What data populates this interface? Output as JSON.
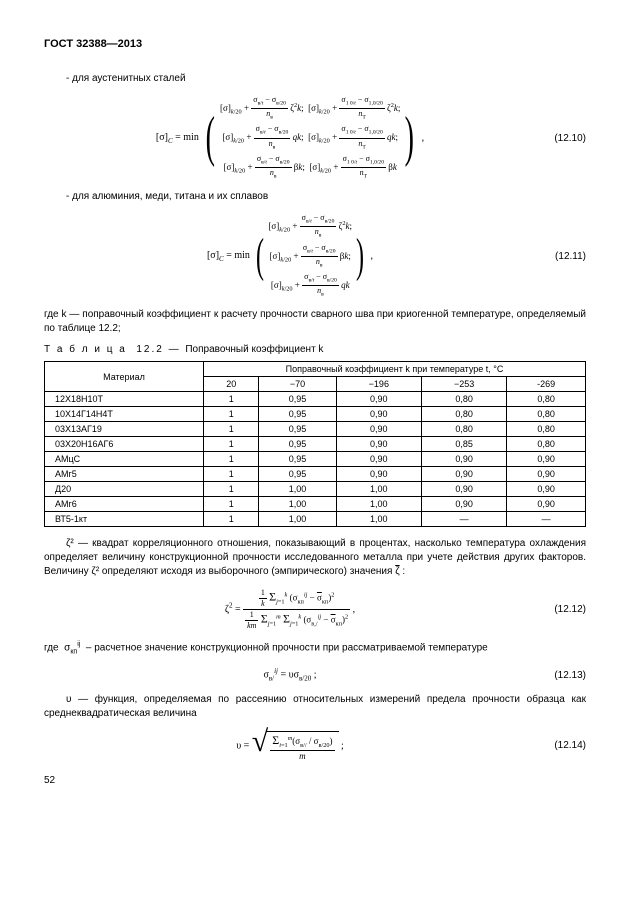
{
  "header": "ГОСТ 32388—2013",
  "t1": "- для аустенитных сталей",
  "eq10": {
    "lhs": "[σ]_C = min",
    "row1a": "[σ]_{k/20} + (σ_{в/t} − σ_{в/20}) / n_в · ζ²k;",
    "row1b": "[σ]_{k/20} + (σ_{1 0/t} − σ_{1,0/20}) / n_T · ζ²k;",
    "row2a": "[σ]_{k/20} + (σ_{в/t} − σ_{в/20}) / n_в · qk;",
    "row2b": "[σ]_{k/20} + (σ_{1 0/t} − σ_{1,0/20}) / n_T · qk;",
    "row3a": "[σ]_{k/20} + (σ_{в/t} − σ_{в/20}) / n_в · βk;",
    "row3b": "[σ]_{k/20} + (σ_{1 0/t} − σ_{1,0/20}) / n_T · βk",
    "num": "(12.10)"
  },
  "t2": "- для алюминия, меди, титана и их сплавов",
  "eq11": {
    "lhs": "[σ]_C = min",
    "r1": "[σ]_{k/20} + (σ_{в/t} − σ_{в/20}) / n_в · ζ²k;",
    "r2": "[σ]_{k/20} + (σ_{в/t} − σ_{в/20}) / n_в · βk;",
    "r3": "[σ]_{k/20} + (σ_{в/t} − σ_{в/20}) / n_в · qk",
    "num": "(12.11)"
  },
  "t3": "где k — поправочный коэффициент к расчету прочности сварного шва при криогенной температуре, определяемый по таблице 12.2;",
  "table_title_a": "Т а б л и ц а  12.2 — ",
  "table_title_b": "Поправочный коэффициент k",
  "table": {
    "h_mat": "Материал",
    "h_coef": "Поправочный коэффициент k при температуре t, °С",
    "temps": [
      "20",
      "−70",
      "−196",
      "−253",
      "-269"
    ],
    "rows": [
      {
        "m": "12Х18Н10Т",
        "v": [
          "1",
          "0,95",
          "0,90",
          "0,80",
          "0,80"
        ]
      },
      {
        "m": "10Х14Г14Н4Т",
        "v": [
          "1",
          "0,95",
          "0,90",
          "0,80",
          "0,80"
        ]
      },
      {
        "m": "03Х13АГ19",
        "v": [
          "1",
          "0,95",
          "0,90",
          "0,80",
          "0,80"
        ]
      },
      {
        "m": "03Х20Н16АГ6",
        "v": [
          "1",
          "0,95",
          "0,90",
          "0,85",
          "0,80"
        ]
      },
      {
        "m": "АМцС",
        "v": [
          "1",
          "0,95",
          "0,90",
          "0,90",
          "0,90"
        ]
      },
      {
        "m": "АМг5",
        "v": [
          "1",
          "0,95",
          "0,90",
          "0,90",
          "0,90"
        ]
      },
      {
        "m": "Д20",
        "v": [
          "1",
          "1,00",
          "1,00",
          "0,90",
          "0,90"
        ]
      },
      {
        "m": "АМг6",
        "v": [
          "1",
          "1,00",
          "1,00",
          "0,90",
          "0,90"
        ]
      },
      {
        "m": "ВТ5-1кт",
        "v": [
          "1",
          "1,00",
          "1,00",
          "—",
          "—"
        ]
      }
    ]
  },
  "t4a": "ζ² — квадрат корреляционного отношения, показывающий в процентах, насколько температура охлаждения определяет величину конструкционной прочности исследованного металла при учете действия других факторов. Величину ζ² определяют исходя из выборочного (эмпирического) значения ",
  "t4b": "ζ",
  "t4c": " :",
  "eq12": {
    "num": "(12.12)"
  },
  "t5a": "где  σ",
  "t5b": "кп",
  "t5c": "ij",
  "t5d": "  – расчетное значение конструкционной прочности при рассматриваемой температуре",
  "eq13": {
    "body": "σ_{в/}^{ij} = υσ_{в/20} ;",
    "num": "(12.13)"
  },
  "t6": "υ — функция, определяемая по рассеянию относительных измерений предела прочности образца как среднеквадратическая величина",
  "eq14": {
    "num": "(12.14)"
  },
  "page": "52"
}
